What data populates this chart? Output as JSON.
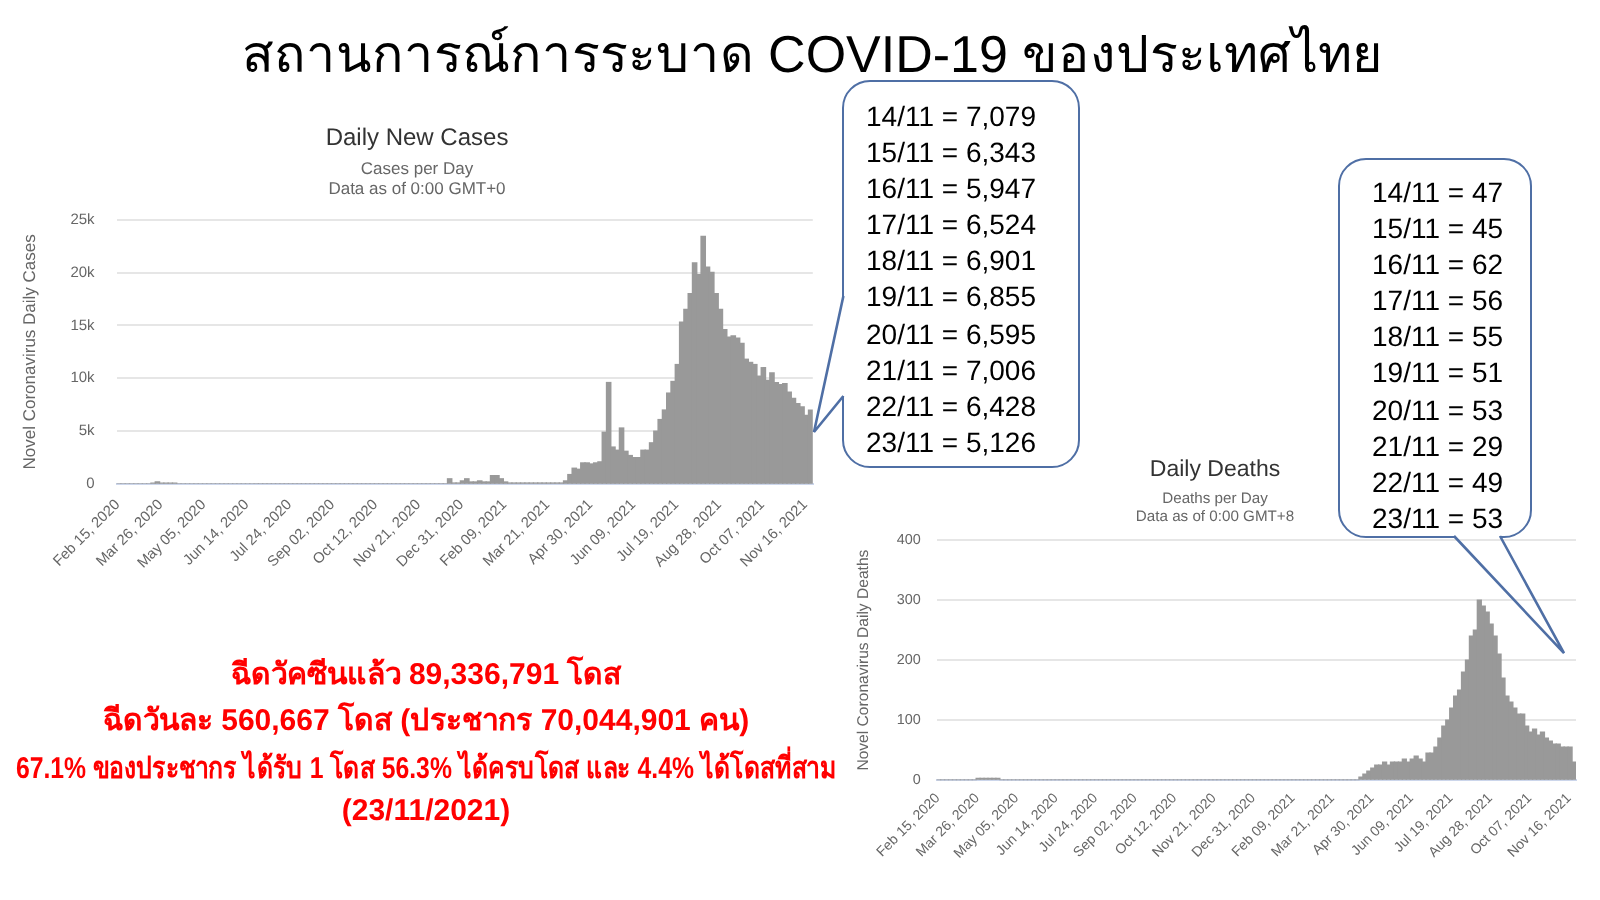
{
  "chart_data": [
    {
      "type": "other",
      "title": "สถานการณ์การระบาด COVID-19 ของประเทศไทย",
      "annotations": [
        "ฉีดวัคซีนแล้ว 89,336,791 โดส",
        "ฉีดวันละ 560,667 โดส (ประชากร 70,044,901 คน)",
        "67.1% ของประชากร ได้รับ 1 โดส 56.3% ได้ครบโดส และ 4.4% ได้โดสที่สาม",
        "(23/11/2021)"
      ]
    },
    {
      "type": "bar",
      "title": "Daily New Cases",
      "subtitle": "Cases per Day\nData as of 0:00 GMT+0",
      "ylabel": "Novel Coronavirus Daily Cases",
      "color": "#999999",
      "grid": "y",
      "x": [
        "2020-02-16",
        "2020-02-20",
        "2020-02-24",
        "2020-02-28",
        "2020-03-03",
        "2020-03-07",
        "2020-03-11",
        "2020-03-15",
        "2020-03-19",
        "2020-03-23",
        "2020-03-27",
        "2020-03-31",
        "2020-04-04",
        "2020-04-08",
        "2020-04-12",
        "2020-04-16",
        "2020-04-20",
        "2020-04-24",
        "2020-04-28",
        "2020-05-02",
        "2020-05-06",
        "2020-05-10",
        "2020-05-14",
        "2020-05-18",
        "2020-05-22",
        "2020-05-26",
        "2020-05-30",
        "2020-06-03",
        "2020-06-07",
        "2020-06-11",
        "2020-06-15",
        "2020-06-19",
        "2020-06-23",
        "2020-06-27",
        "2020-07-01",
        "2020-07-05",
        "2020-07-09",
        "2020-07-13",
        "2020-07-17",
        "2020-07-21",
        "2020-07-25",
        "2020-07-29",
        "2020-08-02",
        "2020-08-06",
        "2020-08-10",
        "2020-08-14",
        "2020-08-18",
        "2020-08-22",
        "2020-08-26",
        "2020-08-30",
        "2020-09-03",
        "2020-09-07",
        "2020-09-11",
        "2020-09-15",
        "2020-09-19",
        "2020-09-23",
        "2020-09-27",
        "2020-10-01",
        "2020-10-05",
        "2020-10-09",
        "2020-10-13",
        "2020-10-17",
        "2020-10-21",
        "2020-10-25",
        "2020-10-29",
        "2020-11-02",
        "2020-11-06",
        "2020-11-10",
        "2020-11-14",
        "2020-11-18",
        "2020-11-22",
        "2020-11-26",
        "2020-11-30",
        "2020-12-04",
        "2020-12-08",
        "2020-12-12",
        "2020-12-16",
        "2020-12-20",
        "2020-12-24",
        "2020-12-28",
        "2021-01-01",
        "2021-01-05",
        "2021-01-09",
        "2021-01-13",
        "2021-01-17",
        "2021-01-21",
        "2021-01-25",
        "2021-01-29",
        "2021-02-02",
        "2021-02-06",
        "2021-02-10",
        "2021-02-14",
        "2021-02-18",
        "2021-02-22",
        "2021-02-26",
        "2021-03-02",
        "2021-03-06",
        "2021-03-10",
        "2021-03-14",
        "2021-03-18",
        "2021-03-22",
        "2021-03-26",
        "2021-03-30",
        "2021-04-03",
        "2021-04-07",
        "2021-04-11",
        "2021-04-15",
        "2021-04-19",
        "2021-04-23",
        "2021-04-27",
        "2021-05-01",
        "2021-05-05",
        "2021-05-09",
        "2021-05-13",
        "2021-05-17",
        "2021-05-21",
        "2021-05-25",
        "2021-05-29",
        "2021-06-02",
        "2021-06-06",
        "2021-06-10",
        "2021-06-14",
        "2021-06-18",
        "2021-06-22",
        "2021-06-26",
        "2021-06-30",
        "2021-07-04",
        "2021-07-08",
        "2021-07-12",
        "2021-07-16",
        "2021-07-20",
        "2021-07-24",
        "2021-07-28",
        "2021-08-01",
        "2021-08-05",
        "2021-08-09",
        "2021-08-13",
        "2021-08-17",
        "2021-08-21",
        "2021-08-25",
        "2021-08-29",
        "2021-09-02",
        "2021-09-06",
        "2021-09-10",
        "2021-09-14",
        "2021-09-18",
        "2021-09-22",
        "2021-09-26",
        "2021-09-30",
        "2021-10-04",
        "2021-10-08",
        "2021-10-12",
        "2021-10-16",
        "2021-10-20",
        "2021-10-24",
        "2021-10-28",
        "2021-11-01",
        "2021-11-05",
        "2021-11-09",
        "2021-11-13",
        "2021-11-17",
        "2021-11-21"
      ],
      "values": [
        0,
        0,
        0,
        0,
        0,
        0,
        0,
        0,
        100,
        200,
        100,
        100,
        100,
        100,
        0,
        0,
        0,
        0,
        0,
        0,
        0,
        0,
        0,
        0,
        0,
        0,
        0,
        0,
        0,
        0,
        0,
        0,
        0,
        0,
        0,
        0,
        0,
        0,
        0,
        0,
        0,
        0,
        0,
        0,
        0,
        0,
        0,
        0,
        0,
        0,
        0,
        0,
        0,
        0,
        0,
        0,
        0,
        0,
        0,
        0,
        0,
        0,
        0,
        0,
        0,
        0,
        0,
        0,
        0,
        0,
        0,
        0,
        0,
        0,
        0,
        0,
        0,
        500,
        100,
        100,
        300,
        500,
        200,
        200,
        300,
        200,
        200,
        800,
        800,
        500,
        200,
        100,
        100,
        100,
        100,
        100,
        100,
        100,
        100,
        100,
        100,
        100,
        100,
        100,
        300,
        900,
        1500,
        1400,
        2000,
        2000,
        1900,
        2000,
        2100,
        4900,
        9600,
        3500,
        3200,
        5300,
        3100,
        2700,
        2500,
        2500,
        3200,
        3200,
        3900,
        5000,
        6100,
        7000,
        8600,
        9700,
        11300,
        15300,
        16500,
        18000,
        20900,
        19800,
        23400,
        20500,
        20000,
        18000,
        16500,
        14600,
        13900,
        14000,
        13800,
        13300,
        11800,
        11500,
        11300,
        10200,
        11000,
        9800,
        10500,
        9600,
        9400,
        9500,
        8700,
        8100,
        7600,
        7300,
        6500,
        7000
      ],
      "xlim": [
        "2020-02-14",
        "2021-11-23"
      ],
      "xticks": [
        {
          "value": "2020-02-15",
          "label": "Feb 15, 2020"
        },
        {
          "value": "2020-03-26",
          "label": "Mar 26, 2020"
        },
        {
          "value": "2020-05-05",
          "label": "May 05, 2020"
        },
        {
          "value": "2020-06-14",
          "label": "Jun 14, 2020"
        },
        {
          "value": "2020-07-24",
          "label": "Jul 24, 2020"
        },
        {
          "value": "2020-09-02",
          "label": "Sep 02, 2020"
        },
        {
          "value": "2020-10-12",
          "label": "Oct 12, 2020"
        },
        {
          "value": "2020-11-21",
          "label": "Nov 21, 2020"
        },
        {
          "value": "2020-12-31",
          "label": "Dec 31, 2020"
        },
        {
          "value": "2021-02-09",
          "label": "Feb 09, 2021"
        },
        {
          "value": "2021-03-21",
          "label": "Mar 21, 2021"
        },
        {
          "value": "2021-04-30",
          "label": "Apr 30, 2021"
        },
        {
          "value": "2021-06-09",
          "label": "Jun 09, 2021"
        },
        {
          "value": "2021-07-19",
          "label": "Jul 19, 2021"
        },
        {
          "value": "2021-08-28",
          "label": "Aug 28, 2021"
        },
        {
          "value": "2021-10-07",
          "label": "Oct 07, 2021"
        },
        {
          "value": "2021-11-16",
          "label": "Nov 16, 2021"
        }
      ],
      "ylim": [
        0,
        25000
      ],
      "yticks": [
        0,
        {
          "value": 5000,
          "label": "5k"
        },
        {
          "value": 10000,
          "label": "10k"
        },
        {
          "value": 15000,
          "label": "15k"
        },
        {
          "value": 20000,
          "label": "20k"
        },
        {
          "value": 25000,
          "label": "25k"
        }
      ],
      "annotations": [
        "14/11 = 7,079",
        "15/11 = 6,343",
        "16/11 = 5,947",
        "17/11 = 6,524",
        "18/11 = 6,901",
        "19/11 = 6,855",
        "20/11 = 6,595",
        "21/11 = 7,006",
        "22/11 = 6,428",
        "23/11 = 5,126"
      ]
    },
    {
      "type": "bar",
      "title": "Daily Deaths",
      "subtitle": "Deaths per Day\nData as of 0:00 GMT+8",
      "ylabel": "Novel Coronavirus Daily Deaths",
      "color": "#999999",
      "grid": "y",
      "x": [
        "2020-02-16",
        "2020-02-20",
        "2020-02-24",
        "2020-02-28",
        "2020-03-03",
        "2020-03-07",
        "2020-03-11",
        "2020-03-15",
        "2020-03-19",
        "2020-03-23",
        "2020-03-27",
        "2020-03-31",
        "2020-04-04",
        "2020-04-08",
        "2020-04-12",
        "2020-04-16",
        "2020-04-20",
        "2020-04-24",
        "2020-04-28",
        "2020-05-02",
        "2020-05-06",
        "2020-05-10",
        "2020-05-14",
        "2020-05-18",
        "2020-05-22",
        "2020-05-26",
        "2020-05-30",
        "2020-06-03",
        "2020-06-07",
        "2020-06-11",
        "2020-06-15",
        "2020-06-19",
        "2020-06-23",
        "2020-06-27",
        "2020-07-01",
        "2020-07-05",
        "2020-07-09",
        "2020-07-13",
        "2020-07-17",
        "2020-07-21",
        "2020-07-25",
        "2020-07-29",
        "2020-08-02",
        "2020-08-06",
        "2020-08-10",
        "2020-08-14",
        "2020-08-18",
        "2020-08-22",
        "2020-08-26",
        "2020-08-30",
        "2020-09-03",
        "2020-09-07",
        "2020-09-11",
        "2020-09-15",
        "2020-09-19",
        "2020-09-23",
        "2020-09-27",
        "2020-10-01",
        "2020-10-05",
        "2020-10-09",
        "2020-10-13",
        "2020-10-17",
        "2020-10-21",
        "2020-10-25",
        "2020-10-29",
        "2020-11-02",
        "2020-11-06",
        "2020-11-10",
        "2020-11-14",
        "2020-11-18",
        "2020-11-22",
        "2020-11-26",
        "2020-11-30",
        "2020-12-04",
        "2020-12-08",
        "2020-12-12",
        "2020-12-16",
        "2020-12-20",
        "2020-12-24",
        "2020-12-28",
        "2021-01-01",
        "2021-01-05",
        "2021-01-09",
        "2021-01-13",
        "2021-01-17",
        "2021-01-21",
        "2021-01-25",
        "2021-01-29",
        "2021-02-02",
        "2021-02-06",
        "2021-02-10",
        "2021-02-14",
        "2021-02-18",
        "2021-02-22",
        "2021-02-26",
        "2021-03-02",
        "2021-03-06",
        "2021-03-10",
        "2021-03-14",
        "2021-03-18",
        "2021-03-22",
        "2021-03-26",
        "2021-03-30",
        "2021-04-03",
        "2021-04-07",
        "2021-04-11",
        "2021-04-15",
        "2021-04-19",
        "2021-04-23",
        "2021-04-27",
        "2021-05-01",
        "2021-05-05",
        "2021-05-09",
        "2021-05-13",
        "2021-05-17",
        "2021-05-21",
        "2021-05-25",
        "2021-05-29",
        "2021-06-02",
        "2021-06-06",
        "2021-06-10",
        "2021-06-14",
        "2021-06-18",
        "2021-06-22",
        "2021-06-26",
        "2021-06-30",
        "2021-07-04",
        "2021-07-08",
        "2021-07-12",
        "2021-07-16",
        "2021-07-20",
        "2021-07-24",
        "2021-07-28",
        "2021-08-01",
        "2021-08-05",
        "2021-08-09",
        "2021-08-13",
        "2021-08-17",
        "2021-08-21",
        "2021-08-25",
        "2021-08-29",
        "2021-09-02",
        "2021-09-06",
        "2021-09-10",
        "2021-09-14",
        "2021-09-18",
        "2021-09-22",
        "2021-09-26",
        "2021-09-30",
        "2021-10-04",
        "2021-10-08",
        "2021-10-12",
        "2021-10-16",
        "2021-10-20",
        "2021-10-24",
        "2021-10-28",
        "2021-11-01",
        "2021-11-05",
        "2021-11-09",
        "2021-11-13",
        "2021-11-17",
        "2021-11-21"
      ],
      "values": [
        0,
        0,
        0,
        0,
        0,
        0,
        0,
        0,
        0,
        0,
        3,
        3,
        3,
        3,
        3,
        3,
        0,
        0,
        0,
        0,
        0,
        0,
        0,
        0,
        0,
        0,
        0,
        0,
        0,
        0,
        0,
        0,
        0,
        0,
        0,
        0,
        0,
        0,
        0,
        0,
        0,
        0,
        0,
        0,
        0,
        0,
        0,
        0,
        0,
        0,
        0,
        0,
        0,
        0,
        0,
        0,
        0,
        0,
        0,
        0,
        0,
        0,
        0,
        0,
        0,
        0,
        0,
        0,
        0,
        0,
        0,
        0,
        0,
        0,
        0,
        0,
        0,
        0,
        0,
        0,
        0,
        0,
        0,
        0,
        0,
        0,
        0,
        0,
        0,
        0,
        0,
        0,
        0,
        0,
        0,
        0,
        0,
        0,
        0,
        0,
        0,
        0,
        0,
        0,
        0,
        0,
        0,
        5,
        10,
        15,
        20,
        25,
        25,
        30,
        25,
        30,
        30,
        30,
        35,
        30,
        35,
        40,
        35,
        30,
        45,
        45,
        55,
        70,
        90,
        100,
        120,
        140,
        150,
        180,
        200,
        240,
        250,
        300,
        290,
        280,
        260,
        240,
        210,
        170,
        140,
        130,
        120,
        110,
        110,
        90,
        80,
        85,
        75,
        80,
        70,
        65,
        60,
        60,
        55,
        55,
        55,
        30
      ],
      "xlim": [
        "2020-02-14",
        "2021-11-23"
      ],
      "xticks": [
        {
          "value": "2020-02-15",
          "label": "Feb 15, 2020"
        },
        {
          "value": "2020-03-26",
          "label": "Mar 26, 2020"
        },
        {
          "value": "2020-05-05",
          "label": "May 05, 2020"
        },
        {
          "value": "2020-06-14",
          "label": "Jun 14, 2020"
        },
        {
          "value": "2020-07-24",
          "label": "Jul 24, 2020"
        },
        {
          "value": "2020-09-02",
          "label": "Sep 02, 2020"
        },
        {
          "value": "2020-10-12",
          "label": "Oct 12, 2020"
        },
        {
          "value": "2020-11-21",
          "label": "Nov 21, 2020"
        },
        {
          "value": "2020-12-31",
          "label": "Dec 31, 2020"
        },
        {
          "value": "2021-02-09",
          "label": "Feb 09, 2021"
        },
        {
          "value": "2021-03-21",
          "label": "Mar 21, 2021"
        },
        {
          "value": "2021-04-30",
          "label": "Apr 30, 2021"
        },
        {
          "value": "2021-06-09",
          "label": "Jun 09, 2021"
        },
        {
          "value": "2021-07-19",
          "label": "Jul 19, 2021"
        },
        {
          "value": "2021-08-28",
          "label": "Aug 28, 2021"
        },
        {
          "value": "2021-10-07",
          "label": "Oct 07, 2021"
        },
        {
          "value": "2021-11-16",
          "label": "Nov 16, 2021"
        }
      ],
      "ylim": [
        0,
        400
      ],
      "yticks": [
        0,
        100,
        200,
        300,
        400
      ],
      "annotations": [
        "14/11 = 47",
        "15/11 = 45",
        "16/11 = 62",
        "17/11 = 56",
        "18/11 = 55",
        "19/11 = 51",
        "20/11 = 53",
        "21/11 = 29",
        "22/11 = 49",
        "23/11 = 53"
      ]
    }
  ]
}
